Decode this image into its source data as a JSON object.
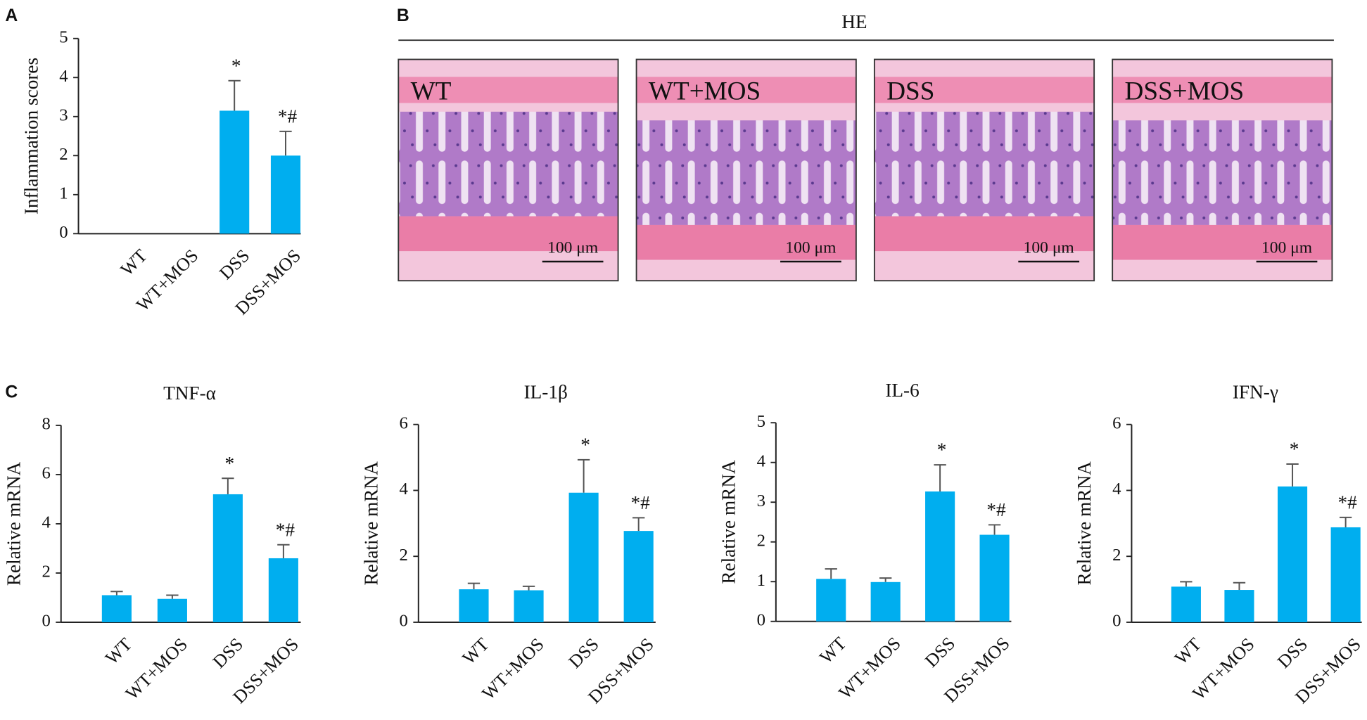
{
  "panel_labels": [
    "A",
    "B",
    "C"
  ],
  "histology": {
    "title": "HE",
    "images": [
      {
        "label": "WT",
        "scale_bar": "100 μm"
      },
      {
        "label": "WT+MOS",
        "scale_bar": "100 μm"
      },
      {
        "label": "DSS",
        "scale_bar": "100 μm"
      },
      {
        "label": "DSS+MOS",
        "scale_bar": "100 μm"
      }
    ]
  },
  "chart_data": [
    {
      "type": "bar",
      "ylabel": "Inflammation scores",
      "categories": [
        "WT",
        "WT+MOS",
        "DSS",
        "DSS+MOS"
      ],
      "values": [
        0,
        0,
        3.15,
        2.0
      ],
      "errors": [
        0,
        0,
        0.77,
        0.62
      ],
      "annotations": [
        null,
        null,
        "*",
        "*#"
      ],
      "color": "#00aeef",
      "ylim": [
        0,
        5
      ],
      "yticks": [
        0,
        1,
        2,
        3,
        4,
        5
      ]
    },
    {
      "type": "bar",
      "title": "TNF-α",
      "ylabel": "Relative mRNA",
      "categories": [
        "WT",
        "WT+MOS",
        "DSS",
        "DSS+MOS"
      ],
      "values": [
        1.1,
        0.95,
        5.2,
        2.6
      ],
      "errors": [
        0.15,
        0.15,
        0.65,
        0.55
      ],
      "annotations": [
        null,
        null,
        "*",
        "*#"
      ],
      "color": "#00aeef",
      "ylim": [
        0,
        8
      ],
      "yticks": [
        0,
        2,
        4,
        6,
        8
      ]
    },
    {
      "type": "bar",
      "title": "IL-1β",
      "ylabel": "Relative mRNA",
      "categories": [
        "WT",
        "WT+MOS",
        "DSS",
        "DSS+MOS"
      ],
      "values": [
        1.0,
        0.97,
        3.93,
        2.77
      ],
      "errors": [
        0.18,
        0.12,
        1.0,
        0.4
      ],
      "annotations": [
        null,
        null,
        "*",
        "*#"
      ],
      "color": "#00aeef",
      "ylim": [
        0,
        6
      ],
      "yticks": [
        0,
        2,
        4,
        6
      ]
    },
    {
      "type": "bar",
      "title": "IL-6",
      "ylabel": "Relative mRNA",
      "categories": [
        "WT",
        "WT+MOS",
        "DSS",
        "DSS+MOS"
      ],
      "values": [
        1.07,
        0.99,
        3.27,
        2.18
      ],
      "errors": [
        0.25,
        0.1,
        0.67,
        0.25
      ],
      "annotations": [
        null,
        null,
        "*",
        "*#"
      ],
      "color": "#00aeef",
      "ylim": [
        0,
        5
      ],
      "yticks": [
        0,
        1,
        2,
        3,
        4,
        5
      ]
    },
    {
      "type": "bar",
      "title": "IFN-γ",
      "ylabel": "Relative mRNA",
      "categories": [
        "WT",
        "WT+MOS",
        "DSS",
        "DSS+MOS"
      ],
      "values": [
        1.08,
        0.98,
        4.12,
        2.88
      ],
      "errors": [
        0.15,
        0.22,
        0.68,
        0.3
      ],
      "annotations": [
        null,
        null,
        "*",
        "*#"
      ],
      "color": "#00aeef",
      "ylim": [
        0,
        6
      ],
      "yticks": [
        0,
        2,
        4,
        6
      ]
    }
  ]
}
